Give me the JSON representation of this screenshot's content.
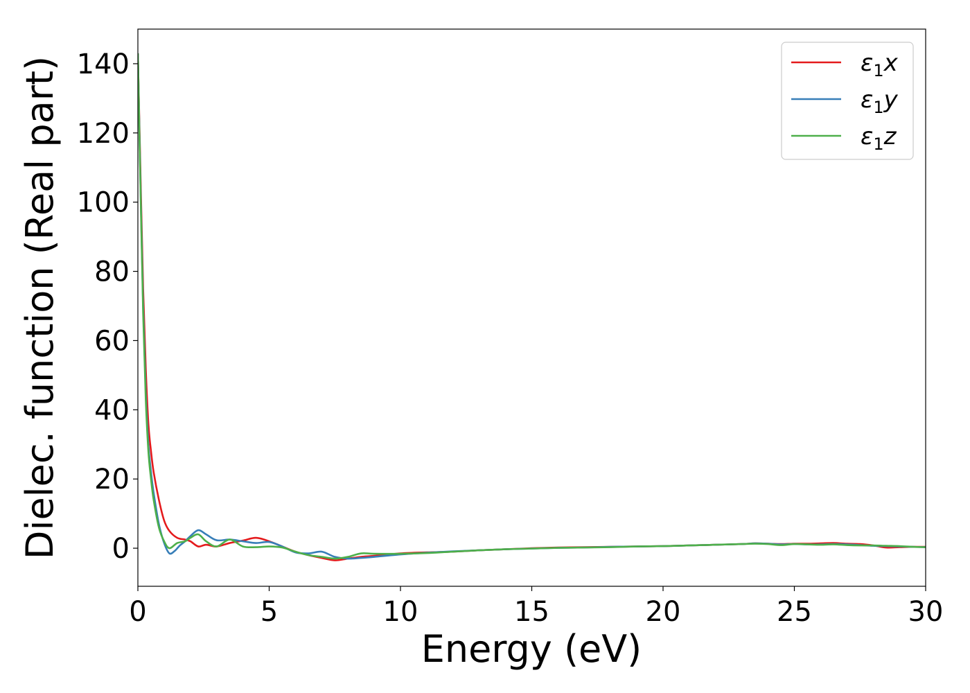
{
  "chart_data": {
    "type": "line",
    "xlabel": "Energy (eV)",
    "ylabel": "Dielec. function (Real part)",
    "xlim": [
      0,
      30
    ],
    "ylim": [
      -11,
      150
    ],
    "xticks": [
      0,
      5,
      10,
      15,
      20,
      25,
      30
    ],
    "yticks": [
      0,
      20,
      40,
      60,
      80,
      100,
      120,
      140
    ],
    "grid": false,
    "legend_position": "top-right",
    "series": [
      {
        "name": "ε₁x",
        "legend_main": "ε",
        "legend_sub": "1",
        "legend_var": "x",
        "color": "#e41a1c",
        "x": [
          0,
          0.1,
          0.2,
          0.3,
          0.4,
          0.5,
          0.6,
          0.8,
          1.0,
          1.2,
          1.5,
          1.8,
          2.0,
          2.3,
          2.6,
          3.0,
          3.5,
          4.0,
          4.5,
          5.0,
          5.5,
          6.0,
          6.5,
          7.0,
          7.5,
          8.0,
          8.5,
          9.0,
          10.0,
          11.0,
          12.0,
          13.0,
          14.0,
          15.0,
          16.0,
          17.0,
          18.0,
          19.0,
          20.0,
          21.0,
          22.0,
          23.0,
          23.5,
          24.0,
          24.5,
          25.0,
          25.5,
          26.0,
          26.5,
          27.0,
          27.5,
          28.0,
          28.5,
          29.0,
          29.5,
          30.0
        ],
        "values": [
          143,
          108,
          75,
          52,
          36,
          28,
          22,
          14,
          8,
          5,
          3,
          2.5,
          2.0,
          0.5,
          1.0,
          0.5,
          1.5,
          2.2,
          3.0,
          2.0,
          0.5,
          -1.0,
          -2.0,
          -2.8,
          -3.5,
          -3.0,
          -2.5,
          -2.2,
          -1.5,
          -1.2,
          -1.0,
          -0.6,
          -0.3,
          0.0,
          0.2,
          0.3,
          0.4,
          0.5,
          0.6,
          0.8,
          1.0,
          1.2,
          1.4,
          1.3,
          1.2,
          1.3,
          1.3,
          1.4,
          1.5,
          1.3,
          1.2,
          0.8,
          0.2,
          0.3,
          0.4,
          0.4
        ]
      },
      {
        "name": "ε₁y",
        "legend_main": "ε",
        "legend_sub": "1",
        "legend_var": "y",
        "color": "#377eb8",
        "x": [
          0,
          0.1,
          0.2,
          0.3,
          0.4,
          0.5,
          0.6,
          0.8,
          1.0,
          1.2,
          1.4,
          1.6,
          1.8,
          2.0,
          2.3,
          2.6,
          3.0,
          3.5,
          4.0,
          4.5,
          5.0,
          5.5,
          6.0,
          6.5,
          7.0,
          7.5,
          8.0,
          8.5,
          9.0,
          10.0,
          11.0,
          12.0,
          13.0,
          14.0,
          15.0,
          16.0,
          17.0,
          18.0,
          19.0,
          20.0,
          21.0,
          22.0,
          23.0,
          23.5,
          24.0,
          24.5,
          25.0,
          25.5,
          26.0,
          26.5,
          27.0,
          27.5,
          28.0,
          28.5,
          29.0,
          29.5,
          30.0
        ],
        "values": [
          143,
          105,
          70,
          45,
          30,
          22,
          16,
          7,
          1.5,
          -1.5,
          -0.8,
          0.8,
          2.0,
          3.5,
          5.2,
          4.0,
          2.3,
          2.5,
          2.0,
          1.5,
          1.8,
          0.5,
          -1.2,
          -1.5,
          -1.0,
          -2.5,
          -3.0,
          -2.8,
          -2.5,
          -1.8,
          -1.3,
          -0.9,
          -0.6,
          -0.3,
          -0.1,
          0.1,
          0.2,
          0.4,
          0.5,
          0.6,
          0.8,
          1.0,
          1.2,
          1.4,
          1.3,
          1.1,
          1.2,
          1.1,
          1.1,
          1.2,
          1.1,
          0.9,
          0.7,
          0.6,
          0.5,
          0.4,
          0.3
        ]
      },
      {
        "name": "ε₁z",
        "legend_main": "ε",
        "legend_sub": "1",
        "legend_var": "z",
        "color": "#4daf4a",
        "x": [
          0,
          0.1,
          0.2,
          0.3,
          0.4,
          0.5,
          0.6,
          0.8,
          1.0,
          1.2,
          1.5,
          1.8,
          2.0,
          2.3,
          2.6,
          3.0,
          3.5,
          4.0,
          4.5,
          5.0,
          5.5,
          6.0,
          6.5,
          7.0,
          7.5,
          8.0,
          8.5,
          9.0,
          10.0,
          11.0,
          12.0,
          13.0,
          14.0,
          15.0,
          16.0,
          17.0,
          18.0,
          19.0,
          20.0,
          21.0,
          22.0,
          23.0,
          23.5,
          24.0,
          24.5,
          25.0,
          25.5,
          26.0,
          26.5,
          27.0,
          27.5,
          28.0,
          28.5,
          29.0,
          29.5,
          30.0
        ],
        "values": [
          143,
          104,
          68,
          43,
          28,
          20,
          14,
          6,
          2,
          0,
          1.5,
          2.0,
          3.0,
          4.0,
          2.0,
          0.5,
          2.5,
          0.5,
          0.3,
          0.5,
          0.2,
          -1.0,
          -2.0,
          -2.5,
          -3.0,
          -2.5,
          -1.5,
          -1.6,
          -1.6,
          -1.4,
          -1.0,
          -0.6,
          -0.3,
          -0.1,
          0.1,
          0.2,
          0.3,
          0.5,
          0.6,
          0.8,
          1.0,
          1.2,
          1.3,
          1.2,
          0.9,
          1.2,
          1.1,
          1.0,
          1.1,
          0.9,
          0.8,
          0.8,
          0.7,
          0.6,
          0.4,
          0.3
        ]
      }
    ]
  }
}
